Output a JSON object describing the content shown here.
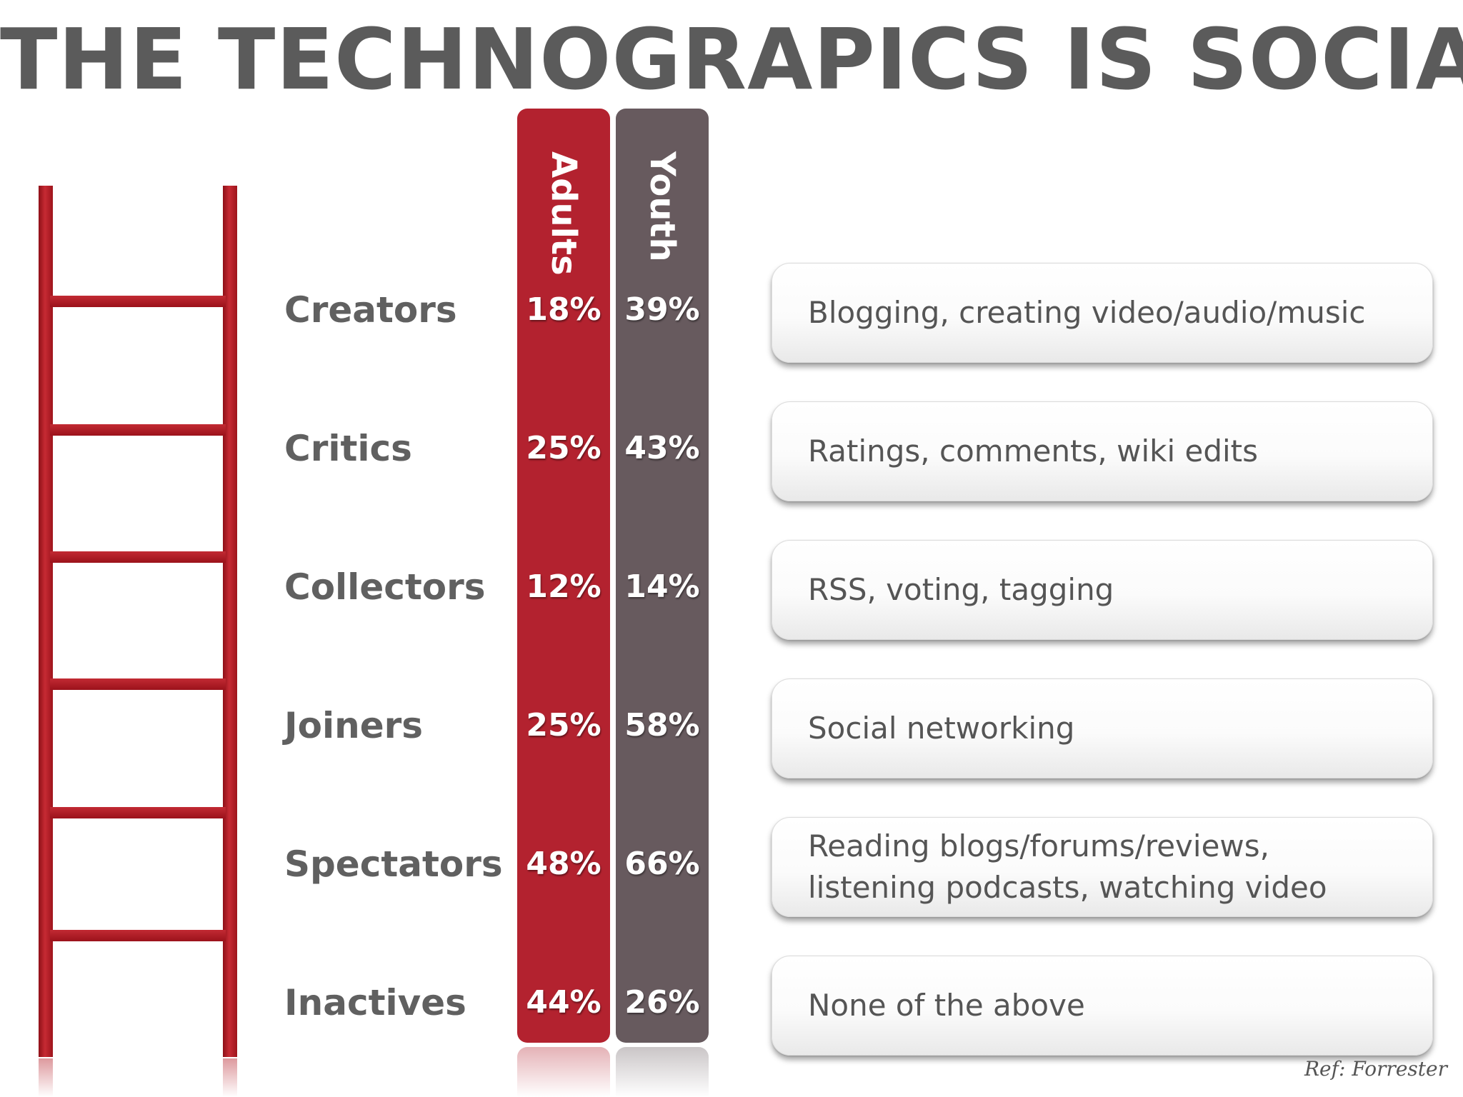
{
  "title": "THE TECHNOGRAPICS IS SOCIAL",
  "columns": {
    "adults": "Adults",
    "youth": "Youth"
  },
  "rows": [
    {
      "label": "Creators",
      "adults": "18%",
      "youth": "39%",
      "description": "Blogging, creating video/audio/music"
    },
    {
      "label": "Critics",
      "adults": "25%",
      "youth": "43%",
      "description": "Ratings, comments, wiki edits"
    },
    {
      "label": "Collectors",
      "adults": "12%",
      "youth": "14%",
      "description": "RSS, voting, tagging"
    },
    {
      "label": "Joiners",
      "adults": "25%",
      "youth": "58%",
      "description": "Social networking"
    },
    {
      "label": "Spectators",
      "adults": "48%",
      "youth": "66%",
      "description": "Reading blogs/forums/reviews,\nlistening podcasts, watching video"
    },
    {
      "label": "Inactives",
      "adults": "44%",
      "youth": "26%",
      "description": "None of the above"
    }
  ],
  "reference": "Ref: Forrester",
  "colors": {
    "adults": "#b3222f",
    "youth": "#675a5e",
    "ladder": "#b01f28",
    "text": "#5b5b5b"
  }
}
